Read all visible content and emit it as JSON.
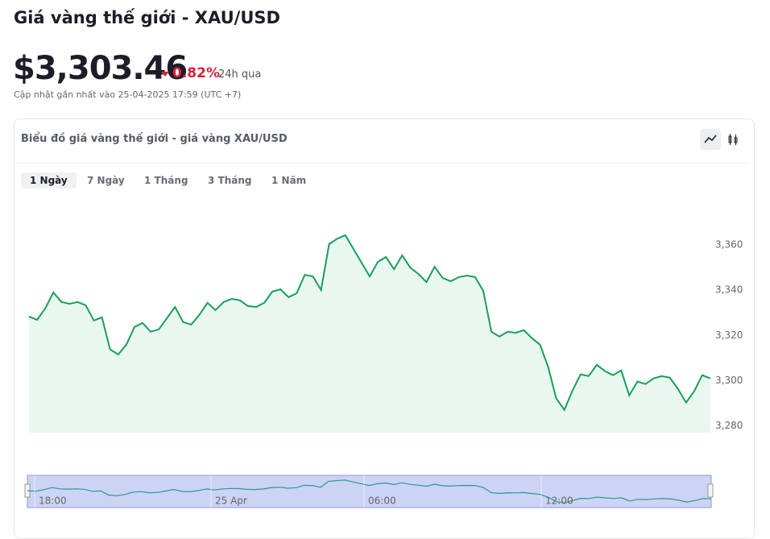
{
  "header": {
    "title": "Giá vàng thế giới - XAU/USD",
    "price": "$3,303.46",
    "change": "0.82%",
    "period": "24h qua",
    "updated": "Cập nhật gần nhất vào 25-04-2025 17:59 (UTC +7)"
  },
  "card": {
    "title": "Biểu đồ giá vàng thế giới - giá vàng XAU/USD",
    "tabs": [
      "1 Ngày",
      "7 Ngày",
      "1 Tháng",
      "3 Tháng",
      "1 Năm"
    ],
    "active_tab": 0
  },
  "chart_data": {
    "type": "area",
    "color": "#16a05a",
    "values": [
      3328.4,
      3326.9,
      3331.9,
      3339.0,
      3334.8,
      3334.0,
      3334.8,
      3333.3,
      3326.6,
      3328.0,
      3313.8,
      3311.6,
      3315.9,
      3323.7,
      3325.5,
      3321.6,
      3322.7,
      3327.6,
      3332.6,
      3325.9,
      3324.8,
      3329.1,
      3334.4,
      3331.2,
      3334.8,
      3336.2,
      3335.5,
      3333.0,
      3332.6,
      3334.4,
      3339.4,
      3340.4,
      3336.9,
      3338.7,
      3346.8,
      3346.1,
      3340.1,
      3360.4,
      3362.8,
      3364.3,
      3358.2,
      3352.2,
      3346.1,
      3352.5,
      3354.7,
      3349.3,
      3355.4,
      3350.0,
      3347.2,
      3343.6,
      3350.4,
      3345.4,
      3344.0,
      3345.8,
      3346.5,
      3345.8,
      3339.7,
      3321.6,
      3319.5,
      3321.6,
      3321.2,
      3322.3,
      3318.8,
      3315.9,
      3306.0,
      3292.1,
      3287.1,
      3295.6,
      3302.8,
      3302.0,
      3307.0,
      3304.2,
      3302.4,
      3304.5,
      3293.5,
      3299.6,
      3298.5,
      3301.0,
      3302.0,
      3301.3,
      3296.4,
      3290.3,
      3295.3,
      3302.4,
      3301.0
    ],
    "ylim": [
      3277,
      3375
    ],
    "yticks": [
      {
        "value": 3280,
        "label": "3,280"
      },
      {
        "value": 3300,
        "label": "3,300"
      },
      {
        "value": 3320,
        "label": "3,320"
      },
      {
        "value": 3340,
        "label": "3,340"
      },
      {
        "value": 3360,
        "label": "3,360"
      }
    ]
  },
  "navigator": {
    "labels": [
      "18:00",
      "25 Apr",
      "06:00",
      "12:00"
    ]
  }
}
